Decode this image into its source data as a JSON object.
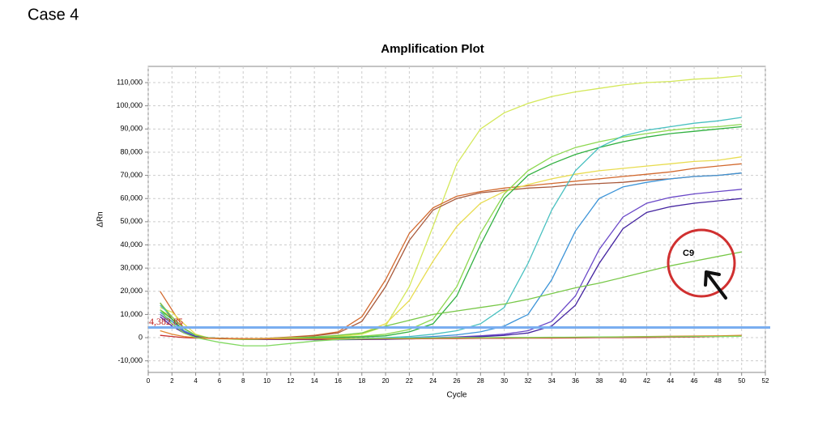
{
  "heading": "Case 4",
  "chart_data": {
    "type": "line",
    "title": "Amplification Plot",
    "x_label": "Cycle",
    "y_label": "ΔRn",
    "x": [
      1,
      2,
      3,
      4,
      5,
      6,
      8,
      10,
      12,
      14,
      16,
      18,
      20,
      22,
      24,
      26,
      28,
      30,
      32,
      34,
      36,
      38,
      40,
      42,
      44,
      46,
      48,
      50
    ],
    "xlim": [
      0,
      52
    ],
    "xticks": [
      0,
      2,
      4,
      6,
      8,
      10,
      12,
      14,
      16,
      18,
      20,
      22,
      24,
      26,
      28,
      30,
      32,
      34,
      36,
      38,
      40,
      42,
      44,
      46,
      48,
      50,
      52
    ],
    "ylim": [
      -15000,
      117000
    ],
    "yticks": [
      {
        "value": -10000,
        "label": "-10,000"
      },
      0,
      {
        "value": 10000,
        "label": "10,000"
      },
      {
        "value": 20000,
        "label": "20,000"
      },
      {
        "value": 30000,
        "label": "30,000"
      },
      {
        "value": 40000,
        "label": "40,000"
      },
      {
        "value": 50000,
        "label": "50,000"
      },
      {
        "value": 60000,
        "label": "60,000"
      },
      {
        "value": 70000,
        "label": "70,000"
      },
      {
        "value": 80000,
        "label": "80,000"
      },
      {
        "value": 90000,
        "label": "90,000"
      },
      {
        "value": 100000,
        "label": "100,000"
      },
      {
        "value": 110000,
        "label": "110,000"
      }
    ],
    "grid": true,
    "threshold": 4382.85,
    "threshold_label": "4,382.85",
    "threshold_color": "#7aaef0",
    "annotation": "C9",
    "series": [
      {
        "color": "#d4e85a",
        "values": [
          12000,
          9000,
          4000,
          1000,
          0,
          -500,
          -800,
          -800,
          -500,
          0,
          500,
          1500,
          5000,
          22000,
          48000,
          75000,
          90000,
          97000,
          101000,
          104000,
          106000,
          107500,
          109000,
          110000,
          110500,
          111500,
          112000,
          113000
        ]
      },
      {
        "color": "#d2692e",
        "values": [
          20000,
          12000,
          4000,
          1000,
          0,
          -300,
          -500,
          -300,
          300,
          1000,
          2500,
          9000,
          25000,
          45000,
          56000,
          61000,
          63000,
          64500,
          65500,
          66500,
          67500,
          68500,
          69500,
          70500,
          71500,
          73000,
          74000,
          75000
        ]
      },
      {
        "color": "#a8583a",
        "values": [
          15000,
          8000,
          3000,
          500,
          0,
          -300,
          -500,
          -300,
          200,
          800,
          2000,
          7000,
          22000,
          42000,
          55000,
          60000,
          62500,
          63500,
          64500,
          65000,
          66000,
          66500,
          67000,
          68000,
          68500,
          69500,
          70000,
          71000
        ]
      },
      {
        "color": "#e8dc50",
        "values": [
          13000,
          11000,
          6000,
          1500,
          0,
          -300,
          -500,
          -400,
          0,
          300,
          800,
          2000,
          6000,
          16000,
          33000,
          48000,
          58000,
          63000,
          66000,
          68500,
          70500,
          72000,
          73000,
          74000,
          75000,
          76000,
          76500,
          78000
        ]
      },
      {
        "color": "#8ed850",
        "values": [
          10000,
          7000,
          3000,
          500,
          0,
          -300,
          -600,
          -600,
          -400,
          0,
          300,
          600,
          1500,
          3500,
          8000,
          22000,
          45000,
          62000,
          72000,
          78000,
          82000,
          84500,
          86500,
          88000,
          89500,
          90500,
          91000,
          92000
        ]
      },
      {
        "color": "#30b040",
        "values": [
          12000,
          8000,
          3000,
          800,
          0,
          -300,
          -600,
          -700,
          -500,
          -200,
          0,
          300,
          800,
          2500,
          6000,
          18000,
          40000,
          60000,
          70000,
          75000,
          79000,
          82000,
          84500,
          86500,
          88000,
          89000,
          90000,
          91000
        ]
      },
      {
        "color": "#48c0c0",
        "values": [
          14000,
          9000,
          4000,
          1000,
          0,
          -300,
          -600,
          -800,
          -800,
          -700,
          -500,
          -300,
          0,
          500,
          1500,
          3000,
          6000,
          13000,
          32000,
          55000,
          72000,
          82000,
          87000,
          89500,
          91000,
          92500,
          93500,
          95000
        ]
      },
      {
        "color": "#3c94d8",
        "values": [
          11000,
          7000,
          3000,
          600,
          0,
          -300,
          -500,
          -700,
          -800,
          -800,
          -700,
          -500,
          -300,
          0,
          500,
          1200,
          2500,
          5000,
          10000,
          25000,
          46000,
          60000,
          65000,
          67000,
          68500,
          69500,
          70000,
          71000
        ]
      },
      {
        "color": "#6a48c8",
        "values": [
          10000,
          6000,
          2500,
          500,
          0,
          -300,
          -500,
          -700,
          -800,
          -800,
          -800,
          -700,
          -500,
          -300,
          0,
          300,
          800,
          1500,
          3000,
          7000,
          18000,
          38000,
          52000,
          58000,
          60500,
          62000,
          63000,
          64000
        ]
      },
      {
        "color": "#4424a0",
        "values": [
          9000,
          5000,
          2000,
          400,
          0,
          -300,
          -500,
          -700,
          -800,
          -900,
          -900,
          -800,
          -700,
          -500,
          -300,
          0,
          400,
          1000,
          2000,
          5000,
          14000,
          32000,
          47000,
          54000,
          56500,
          58000,
          59000,
          60000
        ]
      },
      {
        "color": "#78c848",
        "values": [
          15000,
          9000,
          4000,
          1000,
          0,
          -300,
          -700,
          -600,
          -200,
          300,
          1000,
          2000,
          5000,
          7500,
          10000,
          11500,
          13000,
          14500,
          16500,
          19000,
          21500,
          23500,
          26000,
          28500,
          31000,
          33000,
          35000,
          37000
        ]
      },
      {
        "color": "#c83030",
        "values": [
          1000,
          500,
          0,
          -200,
          -300,
          -400,
          -500,
          -600,
          -600,
          -600,
          -600,
          -600,
          -500,
          -500,
          -400,
          -400,
          -300,
          -300,
          -200,
          -200,
          -100,
          0,
          0,
          100,
          200,
          300,
          500,
          800
        ]
      },
      {
        "color": "#e08830",
        "values": [
          3000,
          1500,
          500,
          0,
          -200,
          -300,
          -400,
          -500,
          -500,
          -500,
          -400,
          -400,
          -300,
          -300,
          -200,
          -200,
          -100,
          0,
          0,
          100,
          200,
          300,
          400,
          500,
          600,
          700,
          800,
          1000
        ]
      },
      {
        "color": "#80d860",
        "values": [
          12000,
          6000,
          2000,
          0,
          -1000,
          -2000,
          -3500,
          -3500,
          -2500,
          -1500,
          -800,
          -500,
          -300,
          -200,
          -100,
          0,
          0,
          100,
          100,
          200,
          200,
          300,
          300,
          400,
          400,
          500,
          500,
          600
        ]
      }
    ]
  }
}
